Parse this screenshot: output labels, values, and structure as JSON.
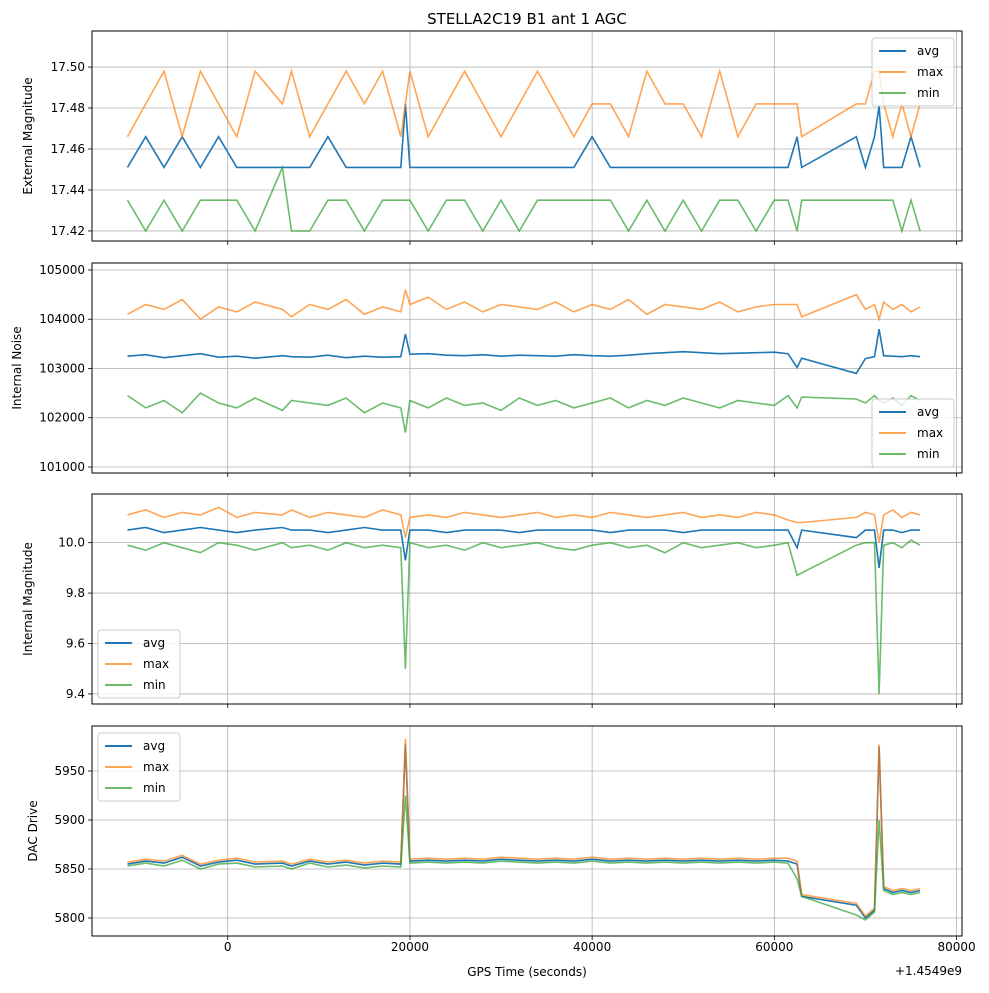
{
  "chart_data": {
    "type": "line",
    "title": "STELLA2C19 B1 ant 1 AGC",
    "xlabel": "GPS Time (seconds)",
    "x_offset_label": "+1.4549e9",
    "x_offset": 1454900000,
    "xlim": [
      -14900,
      80600
    ],
    "xticks": [
      0,
      20000,
      40000,
      60000,
      80000
    ],
    "xtick_labels": [
      "0",
      "20000",
      "40000",
      "60000",
      "80000"
    ],
    "grid": true,
    "colors": {
      "avg": "#1f77b4",
      "max": "#ff7f0e",
      "min": "#2ca02c"
    },
    "x": [
      -11000,
      -9000,
      -7000,
      -5000,
      -3000,
      -1000,
      1000,
      3000,
      6000,
      7000,
      9000,
      11000,
      13000,
      15000,
      17000,
      19000,
      19500,
      20000,
      22000,
      24000,
      26000,
      28000,
      30000,
      32000,
      34000,
      36000,
      38000,
      40000,
      42000,
      44000,
      46000,
      48000,
      50000,
      52000,
      54000,
      56000,
      58000,
      60000,
      61500,
      62500,
      63000,
      69000,
      70000,
      71000,
      71500,
      72000,
      73000,
      74000,
      75000,
      76000
    ],
    "panels": [
      {
        "ylabel": "External Magnitude",
        "ylim": [
          17.4151,
          17.5176
        ],
        "yticks": [
          17.42,
          17.44,
          17.46,
          17.48,
          17.5
        ],
        "ytick_labels": [
          "17.42",
          "17.44",
          "17.46",
          "17.48",
          "17.50"
        ],
        "legend_position": "upper-right",
        "series": [
          {
            "name": "avg",
            "values": [
              17.451,
              17.466,
              17.451,
              17.466,
              17.451,
              17.466,
              17.451,
              17.451,
              17.451,
              17.451,
              17.451,
              17.466,
              17.451,
              17.451,
              17.451,
              17.451,
              17.482,
              17.451,
              17.451,
              17.451,
              17.451,
              17.451,
              17.451,
              17.451,
              17.451,
              17.451,
              17.451,
              17.466,
              17.451,
              17.451,
              17.451,
              17.451,
              17.451,
              17.451,
              17.451,
              17.451,
              17.451,
              17.451,
              17.451,
              17.466,
              17.451,
              17.466,
              17.451,
              17.466,
              17.481,
              17.451,
              17.451,
              17.451,
              17.466,
              17.451
            ]
          },
          {
            "name": "max",
            "values": [
              17.466,
              17.482,
              17.498,
              17.466,
              17.498,
              17.482,
              17.466,
              17.498,
              17.482,
              17.498,
              17.466,
              17.482,
              17.498,
              17.482,
              17.498,
              17.466,
              17.482,
              17.498,
              17.466,
              17.482,
              17.498,
              17.482,
              17.466,
              17.482,
              17.498,
              17.482,
              17.466,
              17.482,
              17.482,
              17.466,
              17.498,
              17.482,
              17.482,
              17.466,
              17.498,
              17.466,
              17.482,
              17.482,
              17.482,
              17.482,
              17.466,
              17.482,
              17.482,
              17.498,
              17.498,
              17.482,
              17.466,
              17.482,
              17.466,
              17.482
            ]
          },
          {
            "name": "min",
            "values": [
              17.435,
              17.42,
              17.435,
              17.42,
              17.435,
              17.435,
              17.435,
              17.42,
              17.451,
              17.42,
              17.42,
              17.435,
              17.435,
              17.42,
              17.435,
              17.435,
              17.435,
              17.435,
              17.42,
              17.435,
              17.435,
              17.42,
              17.435,
              17.42,
              17.435,
              17.435,
              17.435,
              17.435,
              17.435,
              17.42,
              17.435,
              17.42,
              17.435,
              17.42,
              17.435,
              17.435,
              17.42,
              17.435,
              17.435,
              17.42,
              17.435,
              17.435,
              17.435,
              17.435,
              17.435,
              17.435,
              17.435,
              17.42,
              17.435,
              17.42
            ]
          }
        ]
      },
      {
        "ylabel": "Internal Noise",
        "ylim": [
          100878,
          105142
        ],
        "yticks": [
          101000,
          102000,
          103000,
          104000,
          105000
        ],
        "ytick_labels": [
          "101000",
          "102000",
          "103000",
          "104000",
          "105000"
        ],
        "legend_position": "lower-right",
        "series": [
          {
            "name": "avg",
            "values": [
              103250,
              103280,
              103220,
              103260,
              103300,
              103230,
              103250,
              103210,
              103260,
              103240,
              103230,
              103270,
              103220,
              103250,
              103230,
              103240,
              103700,
              103290,
              103300,
              103270,
              103260,
              103280,
              103250,
              103270,
              103260,
              103250,
              103280,
              103260,
              103250,
              103270,
              103300,
              103320,
              103340,
              103320,
              103300,
              103310,
              103320,
              103330,
              103300,
              103020,
              103210,
              102900,
              103200,
              103240,
              103800,
              103260,
              103250,
              103240,
              103260,
              103240
            ]
          },
          {
            "name": "max",
            "values": [
              104100,
              104300,
              104200,
              104400,
              104000,
              104250,
              104150,
              104350,
              104200,
              104050,
              104300,
              104200,
              104400,
              104100,
              104250,
              104150,
              104600,
              104300,
              104450,
              104200,
              104350,
              104150,
              104300,
              104250,
              104200,
              104350,
              104150,
              104300,
              104200,
              104400,
              104100,
              104300,
              104250,
              104200,
              104350,
              104150,
              104250,
              104300,
              104300,
              104300,
              104050,
              104500,
              104200,
              104300,
              104000,
              104350,
              104200,
              104300,
              104150,
              104250
            ]
          },
          {
            "name": "min",
            "values": [
              102450,
              102200,
              102350,
              102100,
              102500,
              102300,
              102200,
              102400,
              102150,
              102350,
              102300,
              102250,
              102400,
              102100,
              102300,
              102200,
              101700,
              102350,
              102200,
              102400,
              102250,
              102300,
              102150,
              102400,
              102250,
              102350,
              102200,
              102300,
              102400,
              102200,
              102350,
              102250,
              102400,
              102300,
              102200,
              102350,
              102300,
              102250,
              102450,
              102200,
              102420,
              102380,
              102300,
              102450,
              102350,
              102300,
              102400,
              102250,
              102450,
              102350
            ]
          }
        ]
      },
      {
        "ylabel": "Internal Magnitude",
        "ylim": [
          9.36,
          10.193
        ],
        "yticks": [
          9.4,
          9.6,
          9.8,
          10.0
        ],
        "ytick_labels": [
          "9.4",
          "9.6",
          "9.8",
          "10.0"
        ],
        "legend_position": "lower-left",
        "series": [
          {
            "name": "avg",
            "values": [
              10.05,
              10.06,
              10.04,
              10.05,
              10.06,
              10.05,
              10.04,
              10.05,
              10.06,
              10.05,
              10.05,
              10.04,
              10.05,
              10.06,
              10.05,
              10.05,
              9.93,
              10.05,
              10.05,
              10.04,
              10.05,
              10.05,
              10.05,
              10.04,
              10.05,
              10.05,
              10.05,
              10.05,
              10.04,
              10.05,
              10.05,
              10.05,
              10.04,
              10.05,
              10.05,
              10.05,
              10.05,
              10.05,
              10.05,
              9.98,
              10.05,
              10.02,
              10.05,
              10.05,
              9.9,
              10.05,
              10.05,
              10.04,
              10.05,
              10.05
            ]
          },
          {
            "name": "max",
            "values": [
              10.11,
              10.13,
              10.1,
              10.12,
              10.11,
              10.14,
              10.1,
              10.12,
              10.11,
              10.13,
              10.1,
              10.12,
              10.11,
              10.1,
              10.13,
              10.11,
              10.02,
              10.1,
              10.11,
              10.1,
              10.12,
              10.11,
              10.1,
              10.11,
              10.12,
              10.1,
              10.11,
              10.1,
              10.12,
              10.11,
              10.1,
              10.11,
              10.12,
              10.1,
              10.11,
              10.1,
              10.12,
              10.11,
              10.09,
              10.08,
              10.08,
              10.1,
              10.12,
              10.11,
              10.0,
              10.11,
              10.13,
              10.1,
              10.12,
              10.11
            ]
          },
          {
            "name": "min",
            "values": [
              9.99,
              9.97,
              10.0,
              9.98,
              9.96,
              10.0,
              9.99,
              9.97,
              10.0,
              9.98,
              9.99,
              9.97,
              10.0,
              9.98,
              9.99,
              9.98,
              9.5,
              10.0,
              9.98,
              9.99,
              9.97,
              10.0,
              9.98,
              9.99,
              10.0,
              9.98,
              9.97,
              9.99,
              10.0,
              9.98,
              9.99,
              9.96,
              10.0,
              9.98,
              9.99,
              10.0,
              9.98,
              9.99,
              10.0,
              9.87,
              9.88,
              9.99,
              10.0,
              10.0,
              9.4,
              9.99,
              10.0,
              9.98,
              10.01,
              9.99
            ]
          }
        ]
      },
      {
        "ylabel": "DAC Drive",
        "ylim": [
          5781.6,
          5995.9
        ],
        "yticks": [
          5800,
          5850,
          5900,
          5950
        ],
        "ytick_labels": [
          "5800",
          "5850",
          "5900",
          "5950"
        ],
        "legend_position": "upper-left",
        "series": [
          {
            "name": "avg",
            "values": [
              5855,
              5858,
              5856,
              5862,
              5853,
              5857,
              5859,
              5855,
              5856,
              5853,
              5858,
              5855,
              5857,
              5854,
              5856,
              5855,
              5978,
              5858,
              5859,
              5858,
              5859,
              5858,
              5860,
              5859,
              5858,
              5859,
              5858,
              5860,
              5858,
              5859,
              5858,
              5859,
              5858,
              5859,
              5858,
              5859,
              5858,
              5859,
              5858,
              5855,
              5822,
              5813,
              5800,
              5808,
              5975,
              5830,
              5826,
              5828,
              5826,
              5828
            ]
          },
          {
            "name": "max",
            "values": [
              5857,
              5860,
              5858,
              5864,
              5855,
              5859,
              5861,
              5857,
              5858,
              5855,
              5860,
              5857,
              5859,
              5856,
              5858,
              5857,
              5983,
              5860,
              5861,
              5860,
              5861,
              5860,
              5862,
              5861,
              5860,
              5861,
              5860,
              5862,
              5860,
              5861,
              5860,
              5861,
              5860,
              5861,
              5860,
              5861,
              5860,
              5861,
              5861,
              5858,
              5824,
              5815,
              5802,
              5810,
              5977,
              5832,
              5828,
              5830,
              5828,
              5830
            ]
          },
          {
            "name": "min",
            "values": [
              5853,
              5856,
              5853,
              5859,
              5850,
              5855,
              5856,
              5852,
              5853,
              5850,
              5856,
              5852,
              5854,
              5851,
              5853,
              5852,
              5925,
              5856,
              5857,
              5856,
              5857,
              5856,
              5858,
              5857,
              5856,
              5857,
              5856,
              5858,
              5856,
              5857,
              5856,
              5857,
              5856,
              5857,
              5856,
              5857,
              5856,
              5857,
              5856,
              5840,
              5822,
              5803,
              5798,
              5806,
              5900,
              5828,
              5824,
              5826,
              5824,
              5826
            ]
          }
        ]
      }
    ]
  }
}
